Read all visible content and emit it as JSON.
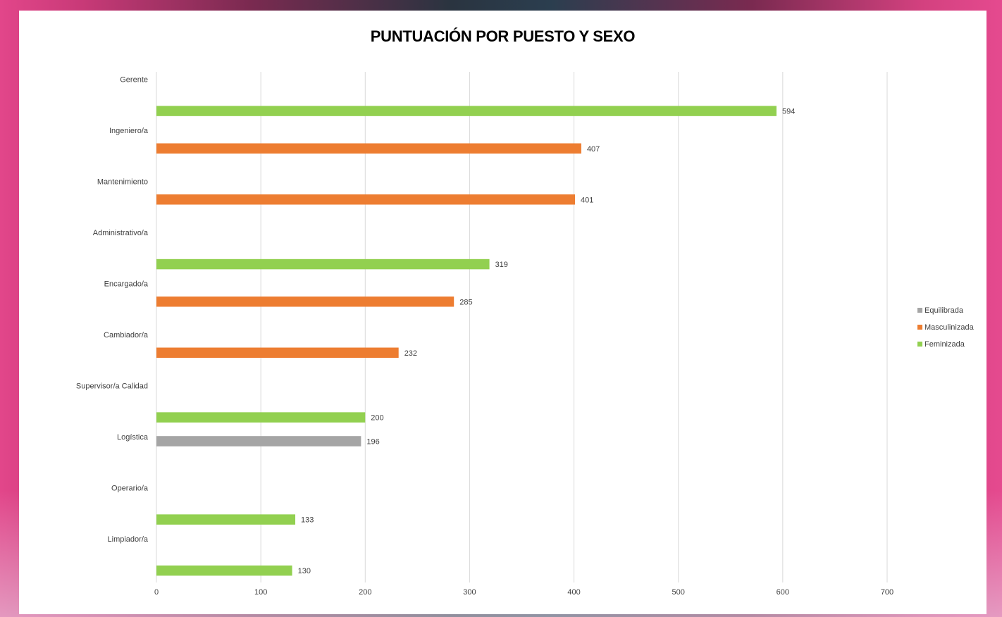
{
  "chart_data": {
    "type": "bar",
    "orientation": "horizontal",
    "title": "PUNTUACIÓN POR PUESTO Y SEXO",
    "xlim": [
      0,
      700
    ],
    "ticks": [
      0,
      100,
      200,
      300,
      400,
      500,
      600,
      700
    ],
    "grid": true,
    "legend_position": "right",
    "categories": [
      "Gerente",
      "Ingeniero/a",
      "Mantenimiento",
      "Administrativo/a",
      "Encargado/a",
      "Cambiador/a",
      "Supervisor/a Calidad",
      "Logística",
      "Operario/a",
      "Limpiador/a"
    ],
    "series": [
      {
        "name": "Equilibrada",
        "color": "#a5a5a5",
        "values": [
          null,
          null,
          null,
          null,
          null,
          null,
          null,
          196,
          null,
          null
        ]
      },
      {
        "name": "Masculinizada",
        "color": "#ed7d31",
        "values": [
          null,
          407,
          401,
          null,
          285,
          232,
          null,
          null,
          null,
          null
        ]
      },
      {
        "name": "Feminizada",
        "color": "#92d050",
        "values": [
          594,
          null,
          null,
          319,
          null,
          null,
          200,
          null,
          133,
          130
        ]
      }
    ]
  }
}
